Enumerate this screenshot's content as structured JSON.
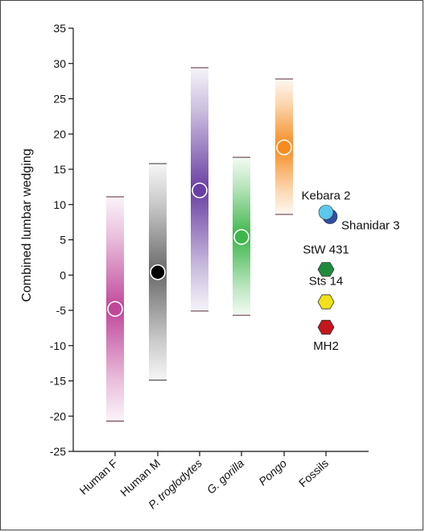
{
  "chart_data": {
    "type": "scatter",
    "title": "",
    "xlabel": "",
    "ylabel": "Combined lumbar wedging",
    "ylim": [
      -25,
      35
    ],
    "yticks": [
      35,
      30,
      25,
      20,
      15,
      10,
      5,
      0,
      -5,
      -10,
      -15,
      -20,
      -25
    ],
    "grid": false,
    "categories": [
      "Human F",
      "Human M",
      "P. troglodytes",
      "G. gorilla",
      "Pongo",
      "Fossils"
    ],
    "italic_categories": [
      "P. troglodytes",
      "G. gorilla",
      "Pongo"
    ],
    "ranges": [
      {
        "category": "Human F",
        "min": -20.7,
        "max": 11.1,
        "mean": -4.8,
        "color": "#c0479a"
      },
      {
        "category": "Human M",
        "min": -14.9,
        "max": 15.8,
        "mean": 0.4,
        "color": "#6a6a6a"
      },
      {
        "category": "P. troglodytes",
        "min": -5.1,
        "max": 29.4,
        "mean": 12.0,
        "color": "#6a3fa3"
      },
      {
        "category": "G. gorilla",
        "min": -5.7,
        "max": 16.7,
        "mean": 5.4,
        "color": "#3db54a"
      },
      {
        "category": "Pongo",
        "min": 8.6,
        "max": 27.8,
        "mean": 18.1,
        "color": "#f68b1f"
      }
    ],
    "mean_marker_colors": {
      "Human M": "#000000"
    },
    "fossils": [
      {
        "name": "Kebara 2",
        "value": 8.9,
        "shape": "circle",
        "color": "#5bc8ec"
      },
      {
        "name": "Shanidar 3",
        "value": 8.3,
        "shape": "circle",
        "color": "#2e4fa3"
      },
      {
        "name": "StW 431",
        "value": 0.8,
        "shape": "hexagon",
        "color": "#1e8b3c"
      },
      {
        "name": "Sts 14",
        "value": -3.8,
        "shape": "hexagon",
        "color": "#f2e11a"
      },
      {
        "name": "MH2",
        "value": -7.4,
        "shape": "hexagon",
        "color": "#c4161c"
      }
    ]
  }
}
